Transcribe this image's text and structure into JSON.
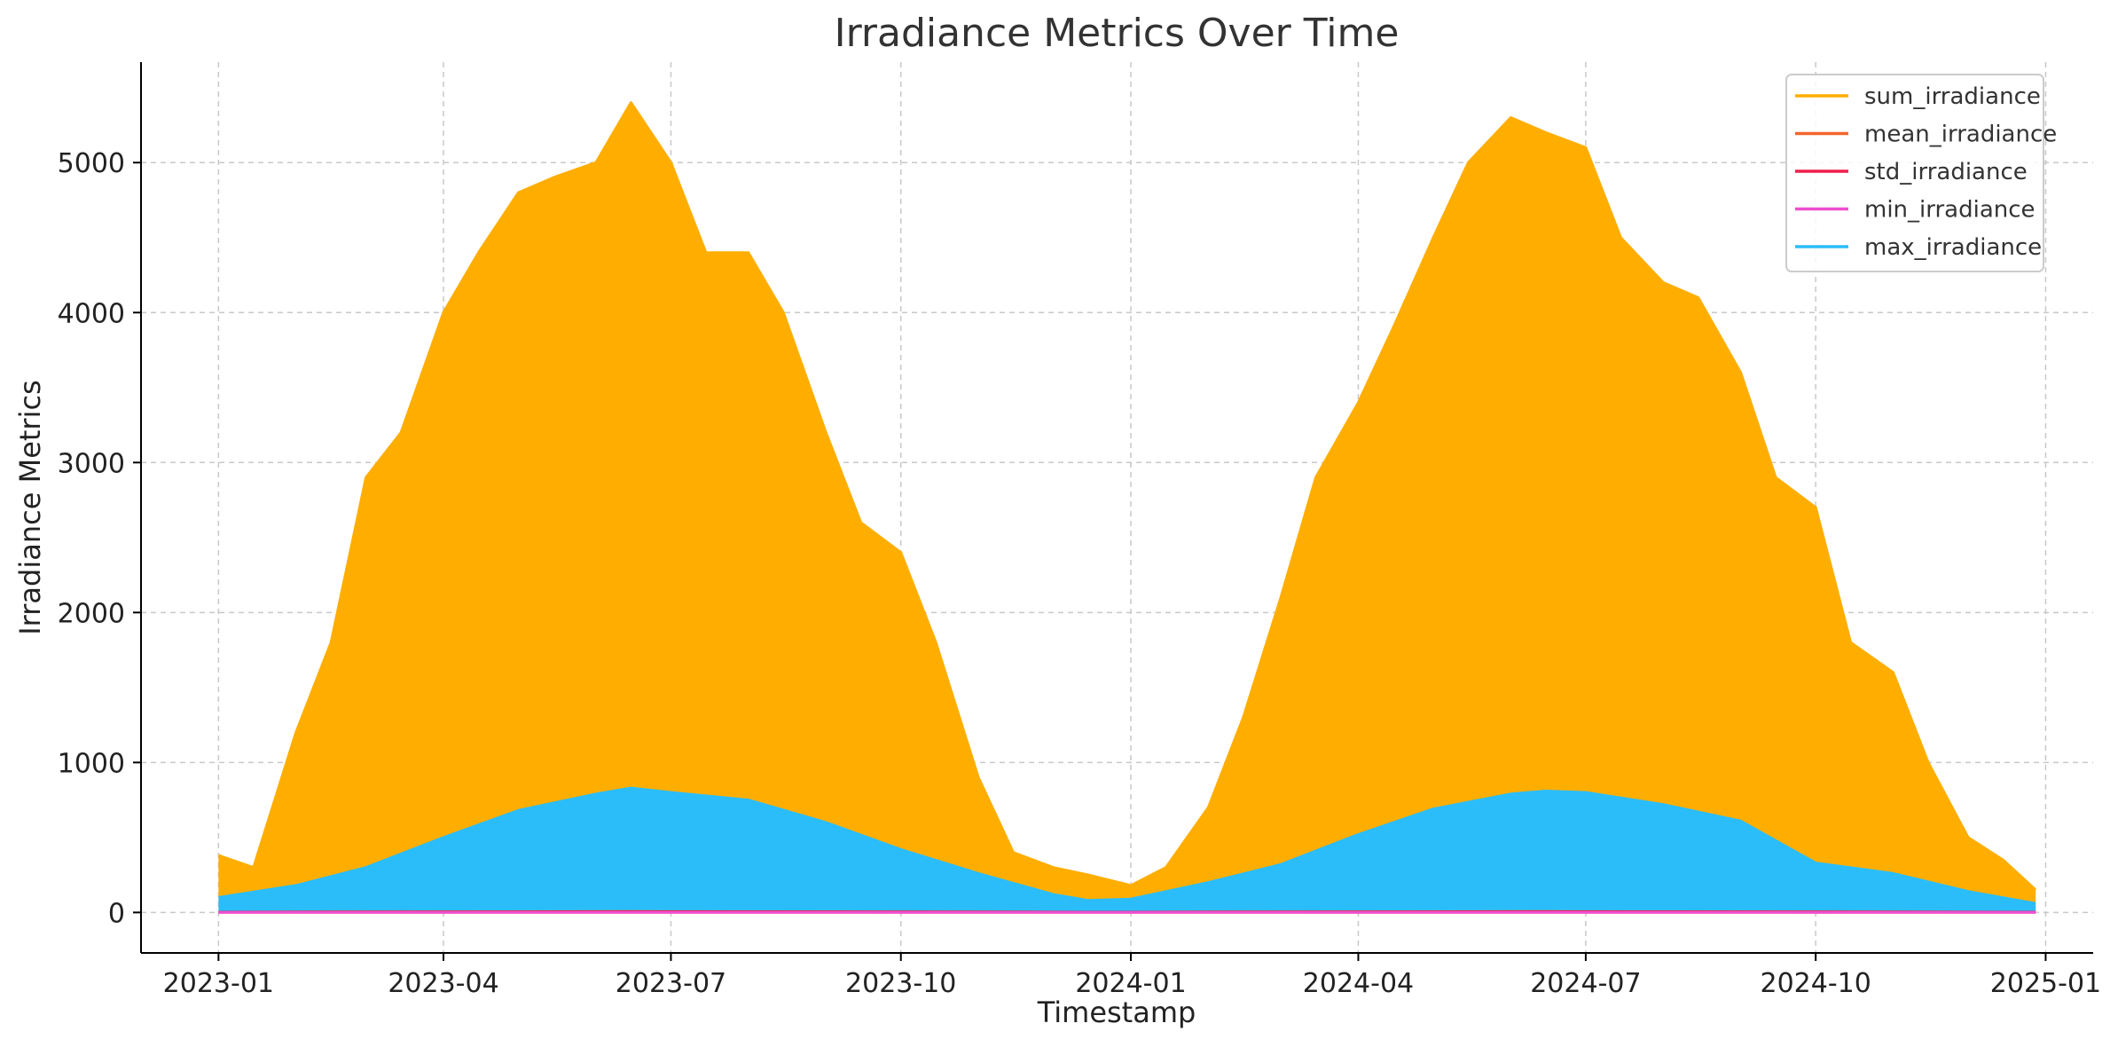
{
  "chart_data": {
    "type": "line",
    "title": "Irradiance Metrics Over Time",
    "xlabel": "Timestamp",
    "ylabel": "Irradiance Metrics",
    "xlim": [
      "2022-12-01",
      "2025-01-20"
    ],
    "ylim": [
      -270,
      5670
    ],
    "x_ticks": [
      "2023-01",
      "2023-04",
      "2023-07",
      "2023-10",
      "2024-01",
      "2024-04",
      "2024-07",
      "2024-10",
      "2025-01"
    ],
    "y_ticks": [
      0,
      1000,
      2000,
      3000,
      4000,
      5000
    ],
    "grid": true,
    "legend_position": "top-right",
    "series": [
      {
        "name": "sum_irradiance",
        "color": "#ffae00",
        "x": [
          "2023-01-01",
          "2023-01-15",
          "2023-02-01",
          "2023-02-15",
          "2023-03-01",
          "2023-03-15",
          "2023-04-01",
          "2023-04-15",
          "2023-05-01",
          "2023-05-15",
          "2023-06-01",
          "2023-06-15",
          "2023-07-01",
          "2023-07-15",
          "2023-08-01",
          "2023-08-15",
          "2023-09-01",
          "2023-09-15",
          "2023-10-01",
          "2023-10-15",
          "2023-11-01",
          "2023-11-15",
          "2023-12-01",
          "2023-12-15",
          "2024-01-01",
          "2024-01-15",
          "2024-02-01",
          "2024-02-15",
          "2024-03-01",
          "2024-03-15",
          "2024-04-01",
          "2024-04-15",
          "2024-05-01",
          "2024-05-15",
          "2024-06-01",
          "2024-06-15",
          "2024-07-01",
          "2024-07-15",
          "2024-08-01",
          "2024-08-15",
          "2024-09-01",
          "2024-09-15",
          "2024-10-01",
          "2024-10-15",
          "2024-11-01",
          "2024-11-15",
          "2024-12-01",
          "2024-12-15",
          "2024-12-28"
        ],
        "values": [
          380,
          300,
          1200,
          1800,
          2900,
          3200,
          4000,
          4400,
          4800,
          4900,
          5000,
          5400,
          5000,
          4400,
          4400,
          4000,
          3200,
          2600,
          2400,
          1800,
          900,
          400,
          300,
          250,
          180,
          300,
          700,
          1300,
          2100,
          2900,
          3400,
          3900,
          4500,
          5000,
          5300,
          5200,
          5100,
          4500,
          4200,
          4100,
          3600,
          2900,
          2700,
          1800,
          1600,
          1000,
          500,
          350,
          150
        ]
      },
      {
        "name": "mean_irradiance",
        "color": "#f2652b",
        "x": [
          "2023-01-01",
          "2023-06-15",
          "2023-12-15",
          "2024-06-15",
          "2024-12-28"
        ],
        "values": [
          2,
          6,
          2,
          6,
          2
        ]
      },
      {
        "name": "std_irradiance",
        "color": "#ee1f4b",
        "x": [
          "2023-01-01",
          "2023-06-15",
          "2023-12-15",
          "2024-06-15",
          "2024-12-28"
        ],
        "values": [
          2,
          5,
          2,
          5,
          2
        ]
      },
      {
        "name": "min_irradiance",
        "color": "#ee4ed0",
        "x": [
          "2023-01-01",
          "2023-06-15",
          "2023-12-15",
          "2024-06-15",
          "2024-12-28"
        ],
        "values": [
          0,
          0,
          0,
          0,
          0
        ]
      },
      {
        "name": "max_irradiance",
        "color": "#2bbdfa",
        "x": [
          "2023-01-01",
          "2023-02-01",
          "2023-03-01",
          "2023-04-01",
          "2023-05-01",
          "2023-06-01",
          "2023-06-15",
          "2023-07-01",
          "2023-08-01",
          "2023-09-01",
          "2023-10-01",
          "2023-11-01",
          "2023-12-01",
          "2023-12-15",
          "2024-01-01",
          "2024-02-01",
          "2024-03-01",
          "2024-04-01",
          "2024-05-01",
          "2024-06-01",
          "2024-06-15",
          "2024-07-01",
          "2024-08-01",
          "2024-09-01",
          "2024-10-01",
          "2024-11-01",
          "2024-12-01",
          "2024-12-28"
        ],
        "values": [
          100,
          180,
          300,
          500,
          680,
          790,
          830,
          800,
          750,
          600,
          420,
          260,
          120,
          80,
          90,
          200,
          320,
          520,
          690,
          790,
          810,
          800,
          720,
          610,
          330,
          260,
          140,
          60
        ]
      }
    ]
  }
}
